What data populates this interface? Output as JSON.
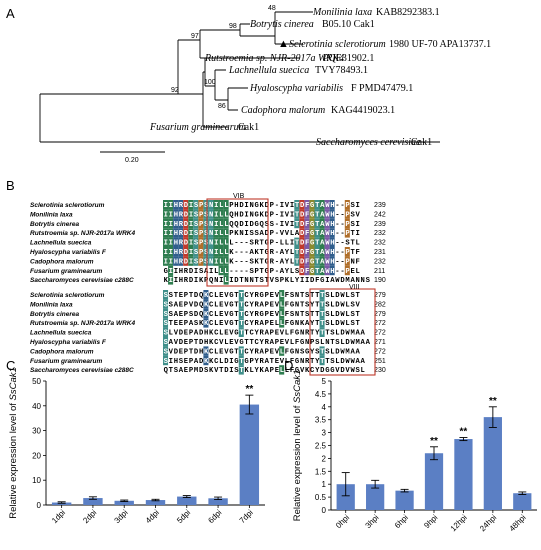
{
  "panels": {
    "a": "A",
    "b": "B",
    "c": "C",
    "d": "D"
  },
  "tree": {
    "taxa": [
      {
        "species": "Monilinia laxa",
        "acc": "KAB8292383.1"
      },
      {
        "species": "Botrytis cinerea",
        "acc": "B05.10 Cak1"
      },
      {
        "species": "Sclerotinia sclerotiorum",
        "acc": "1980 UF-70 APA13737.1"
      },
      {
        "species": "Rutstroemia sp. NJR-2017a WRK4",
        "acc": "PQE31902.1"
      },
      {
        "species": "Lachnellula suecica",
        "acc": "TVY78493.1"
      },
      {
        "species": "Hyaloscypha variabilis",
        "acc": "F PMD47479.1"
      },
      {
        "species": "Cadophora malorum",
        "acc": "KAG4419023.1"
      },
      {
        "species": "Fusarium graminearum",
        "acc": "Cak1"
      },
      {
        "species": "Saccharomyces cerevisiae",
        "acc": "Cak1"
      }
    ],
    "bootstrap": [
      "48",
      "98",
      "97",
      "92",
      "100",
      "86"
    ],
    "marker": "▲",
    "scale": "0.20"
  },
  "alignment": {
    "motifs": [
      "VIB",
      "VIII"
    ],
    "block1": {
      "species": [
        "Sclerotinia sclerotiorum",
        "Monilinia laxa",
        "Botrytis cinerea",
        "Rutstroemia sp. NJR-2017a WRK4",
        "Lachnellula suecica",
        "Hyaloscypha variabilis F",
        "Cadophora malorum",
        "Fusarium graminearum",
        "Saccharomyces cerevisiae c288C"
      ],
      "seqs": [
        "IIHRDISPSNILLPHDINGKDP-IVITDFGTAWH--PSI",
        "IIHRDISPSNILLQHDINGKDP-IVITDFGTAWH--PSV",
        "IIHRDISPSNILLQQDIDGQSS-IVITDFGTAWH--PSI",
        "IIHRDISPSNILLPKNISSADP-VVLADFGTAWH--PTI",
        "IIHRDISPSNILLL---SRTGP-LLITDFGTAWH--STL",
        "IIHRDISPSNILLK---AKTGR-AYLTDFGTAWH--PTF",
        "IIHRDISPSNILLK---SKTGR-AYLTDFGTAWH--PNF",
        "GIIHRDISAILLL----SPTGP-AYLSDFGTAWH--PEL",
        "KIIHRDIKPQNILIDTNNTSTVSPKLYIIDFGIAWDMANNS"
      ],
      "ends": [
        "239",
        "242",
        "239",
        "232",
        "232",
        "231",
        "232",
        "211",
        "190"
      ]
    },
    "block2": {
      "species": [
        "Sclerotinia sclerotiorum",
        "Monilinia laxa",
        "Botrytis cinerea",
        "Rutstroemia sp. NJR-2017a WRK4",
        "Lachnellula suecica",
        "Hyaloscypha variabilis F",
        "Cadophora malorum",
        "Fusarium graminearum",
        "Saccharomyces cerevisiae c288C"
      ],
      "seqs": [
        "SSTEPTDQKCLEVGTTCYRGPEVLFSNTSTTTSLDWLST",
        "SSAEPVDQKCLEVGTTCYRAPEVLFGNTSYTTSLDWLSV",
        "SSAEPSDQKCLEVGTTCYRGPEVLFSNTSTTTSLDWLST",
        "STEEPASKKCLEVGTTCYRAPELLFGNKAYTTSLDWLST",
        "SLVDEPADHKCLEVGTTCYRAPEVLFGNRTYTTSLDWMAA",
        "SAVDEPTDHKCVLEVGTTCYRAPEVLFGNPSLNTSLDWMAA",
        "SVDEPTDHKCLEVGTTCYRAPEVLFGNSGYSTSLDWMAA",
        "SIHSEPADKKCLDIGTGPYRATEVLFGNRTYTTSLDWWAA",
        "QTSAEPMDSKVTDISTKLYKAPELLFGVKCYDGGVDVWSL"
      ],
      "ends": [
        "279",
        "282",
        "279",
        "272",
        "272",
        "271",
        "272",
        "251",
        "230"
      ]
    }
  },
  "chart_data": [
    {
      "type": "bar",
      "categories": [
        "1dpi",
        "2dpi",
        "3dpi",
        "4dpi",
        "5dpi",
        "6dpi",
        "7dpi"
      ],
      "values": [
        1.0,
        2.8,
        1.7,
        2.0,
        3.4,
        2.7,
        40.5
      ],
      "errors": [
        0.3,
        0.5,
        0.3,
        0.3,
        0.4,
        0.5,
        3.8
      ],
      "significance": [
        "",
        "",
        "",
        "",
        "",
        "",
        "**"
      ],
      "ylabel": "Relative expression level of SsCak1",
      "ylabel_plain": "Relative expression level of ",
      "ylabel_gene": "SsCak1",
      "yticks": [
        "0",
        "10",
        "20",
        "30",
        "40",
        "50"
      ],
      "ylim": [
        0,
        50
      ],
      "color": "#5b7fc4"
    },
    {
      "type": "bar",
      "categories": [
        "0hpi",
        "3hpi",
        "6hpi",
        "9hpi",
        "12hpi",
        "24hpi",
        "48hpi"
      ],
      "values": [
        1.0,
        1.0,
        0.75,
        2.2,
        2.75,
        3.6,
        0.65
      ],
      "errors": [
        0.45,
        0.15,
        0.05,
        0.25,
        0.06,
        0.4,
        0.05
      ],
      "significance": [
        "",
        "",
        "",
        "**",
        "**",
        "**",
        ""
      ],
      "ylabel": "Relative expression level of SsCak1",
      "ylabel_plain": "Relative expression level of ",
      "ylabel_gene": "SsCak1",
      "yticks": [
        "0",
        "0.5",
        "1",
        "1.5",
        "2",
        "2.5",
        "3",
        "3.5",
        "4",
        "4.5",
        "5"
      ],
      "ylim": [
        0,
        5
      ],
      "color": "#5b7fc4"
    }
  ]
}
